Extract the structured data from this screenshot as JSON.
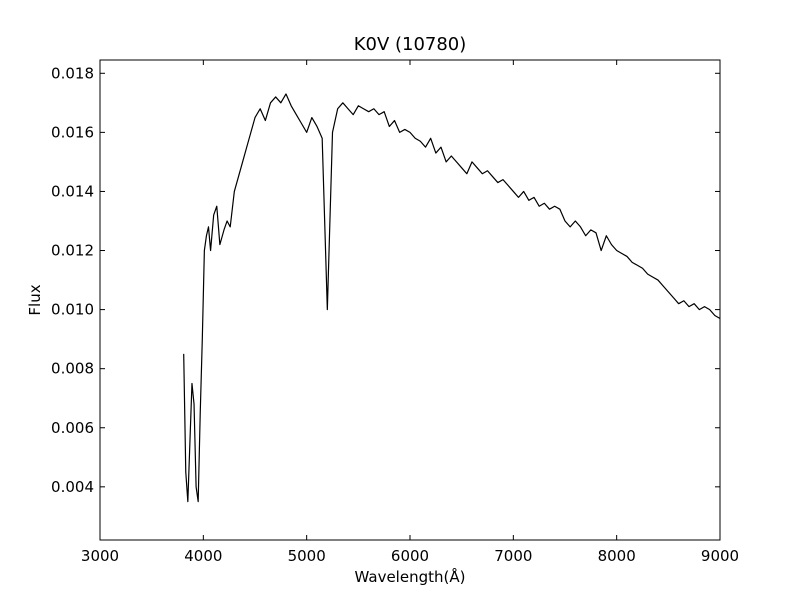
{
  "chart_data": {
    "type": "line",
    "title": "K0V (10780)",
    "xlabel": "Wavelength(Å)",
    "ylabel": "Flux",
    "xlim": [
      3000,
      9000
    ],
    "ylim": [
      0.0022,
      0.01845
    ],
    "xticks": [
      3000,
      4000,
      5000,
      6000,
      7000,
      8000,
      9000
    ],
    "yticks": [
      0.004,
      0.006,
      0.008,
      0.01,
      0.012,
      0.014,
      0.016,
      0.018
    ],
    "ytick_labels": [
      "0.004",
      "0.006",
      "0.008",
      "0.010",
      "0.012",
      "0.014",
      "0.016",
      "0.018"
    ],
    "grid": false,
    "line_color": "#000000",
    "series": [
      {
        "x": [
          3810,
          3830,
          3850,
          3870,
          3890,
          3910,
          3930,
          3950,
          3970,
          3990,
          4010,
          4030,
          4050,
          4070,
          4100,
          4130,
          4160,
          4200,
          4230,
          4260,
          4300,
          4340,
          4380,
          4420,
          4460,
          4500,
          4550,
          4600,
          4650,
          4700,
          4750,
          4800,
          4850,
          4900,
          4950,
          5000,
          5050,
          5100,
          5150,
          5200,
          5250,
          5300,
          5350,
          5400,
          5450,
          5500,
          5550,
          5600,
          5650,
          5700,
          5750,
          5800,
          5850,
          5900,
          5950,
          6000,
          6050,
          6100,
          6150,
          6200,
          6250,
          6300,
          6350,
          6400,
          6450,
          6500,
          6550,
          6600,
          6650,
          6700,
          6750,
          6800,
          6850,
          6900,
          6950,
          7000,
          7050,
          7100,
          7150,
          7200,
          7250,
          7300,
          7350,
          7400,
          7450,
          7500,
          7550,
          7600,
          7650,
          7700,
          7750,
          7800,
          7850,
          7900,
          7950,
          8000,
          8050,
          8100,
          8150,
          8200,
          8250,
          8300,
          8350,
          8400,
          8450,
          8500,
          8550,
          8600,
          8650,
          8700,
          8750,
          8800,
          8850,
          8900,
          8950,
          9000
        ],
        "y": [
          0.0085,
          0.0045,
          0.0035,
          0.0055,
          0.0075,
          0.0068,
          0.004,
          0.0035,
          0.0065,
          0.009,
          0.012,
          0.0125,
          0.0128,
          0.012,
          0.0132,
          0.0135,
          0.0122,
          0.0127,
          0.013,
          0.0128,
          0.014,
          0.0145,
          0.015,
          0.0155,
          0.016,
          0.0165,
          0.0168,
          0.0164,
          0.017,
          0.0172,
          0.017,
          0.0173,
          0.0169,
          0.0166,
          0.0163,
          0.016,
          0.0165,
          0.0162,
          0.0158,
          0.01,
          0.016,
          0.0168,
          0.017,
          0.0168,
          0.0166,
          0.0169,
          0.0168,
          0.0167,
          0.0168,
          0.0166,
          0.0167,
          0.0162,
          0.0164,
          0.016,
          0.0161,
          0.016,
          0.0158,
          0.0157,
          0.0155,
          0.0158,
          0.0153,
          0.0155,
          0.015,
          0.0152,
          0.015,
          0.0148,
          0.0146,
          0.015,
          0.0148,
          0.0146,
          0.0147,
          0.0145,
          0.0143,
          0.0144,
          0.0142,
          0.014,
          0.0138,
          0.014,
          0.0137,
          0.0138,
          0.0135,
          0.0136,
          0.0134,
          0.0135,
          0.0134,
          0.013,
          0.0128,
          0.013,
          0.0128,
          0.0125,
          0.0127,
          0.0126,
          0.012,
          0.0125,
          0.0122,
          0.012,
          0.0119,
          0.0118,
          0.0116,
          0.0115,
          0.0114,
          0.0112,
          0.0111,
          0.011,
          0.0108,
          0.0106,
          0.0104,
          0.0102,
          0.0103,
          0.0101,
          0.0102,
          0.01,
          0.0101,
          0.01,
          0.0098,
          0.0097
        ]
      }
    ]
  }
}
